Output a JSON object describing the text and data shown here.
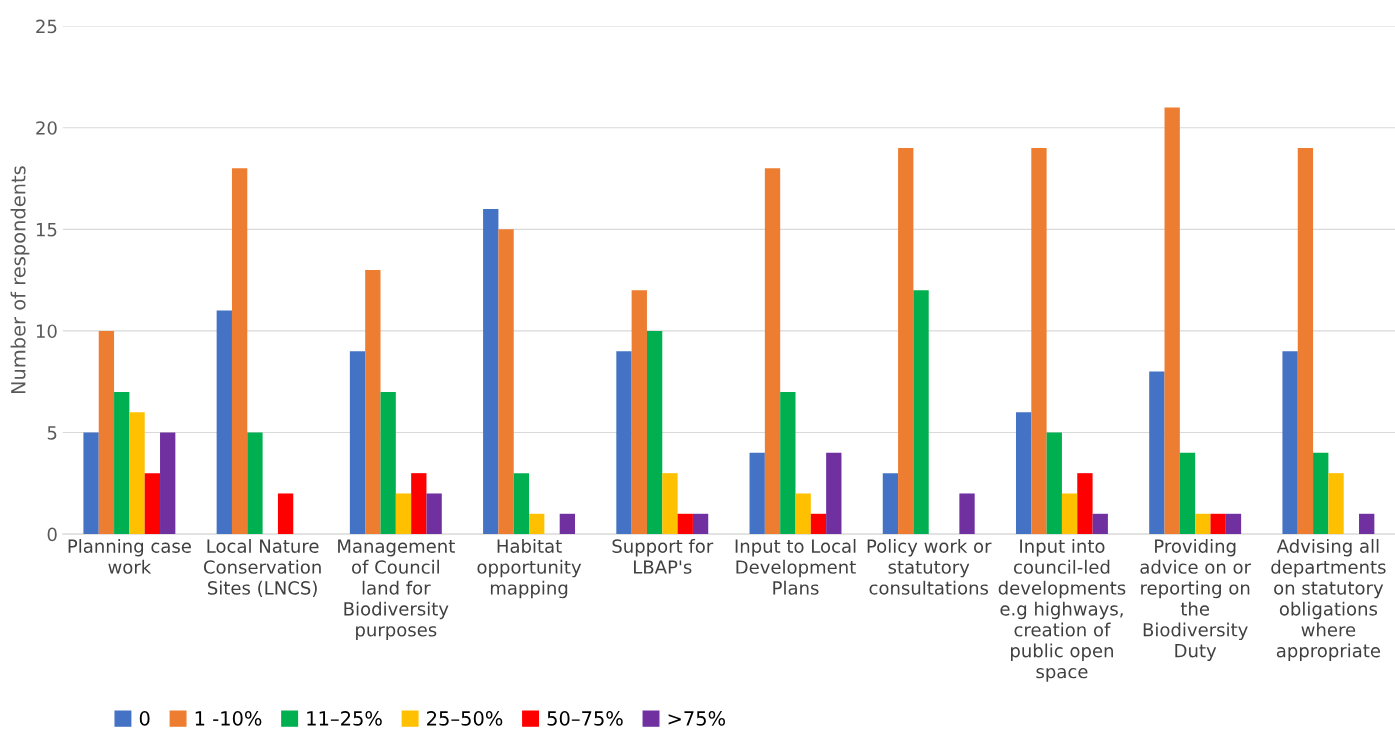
{
  "chart_data": {
    "type": "bar",
    "ylabel": "Number of respondents",
    "categories": [
      "Planning case\nwork",
      "Local Nature\nConservation\nSites (LNCS)",
      "Management\nof Council\nland for\nBiodiversity\npurposes",
      "Habitat\nopportunity\nmapping",
      "Support for\nLBAP's",
      "Input to Local\nDevelopment\nPlans",
      "Policy work or\nstatutory\nconsultations",
      "Input into\ncouncil-led\ndevelopments\ne.g highways,\ncreation of\npublic open\nspace",
      "Providing\nadvice on or\nreporting on\nthe\nBiodiversity\nDuty",
      "Advising all\ndepartments\non statutory\nobligations\nwhere\nappropriate"
    ],
    "series": [
      {
        "name": "0",
        "color": "#4472c4",
        "values": [
          5,
          11,
          9,
          16,
          9,
          4,
          3,
          6,
          8,
          9
        ]
      },
      {
        "name": "1 -10%",
        "color": "#ed7d31",
        "values": [
          10,
          18,
          13,
          15,
          12,
          18,
          19,
          19,
          21,
          19
        ]
      },
      {
        "name": "11–25%",
        "color": "#00b050",
        "values": [
          7,
          5,
          7,
          3,
          10,
          7,
          12,
          5,
          4,
          4
        ]
      },
      {
        "name": "25–50%",
        "color": "#ffc000",
        "values": [
          6,
          0,
          2,
          1,
          3,
          2,
          0,
          2,
          1,
          3
        ]
      },
      {
        "name": "50–75%",
        "color": "#ff0000",
        "values": [
          3,
          2,
          3,
          0,
          1,
          1,
          0,
          3,
          1,
          0
        ]
      },
      {
        "name": ">75%",
        "color": "#7030a0",
        "values": [
          5,
          0,
          2,
          1,
          1,
          4,
          2,
          1,
          1,
          1
        ]
      }
    ],
    "ylim": [
      0,
      25
    ],
    "yticks": [
      0,
      5,
      10,
      15,
      20,
      25
    ],
    "grid": "y",
    "legend": "bottom left"
  }
}
